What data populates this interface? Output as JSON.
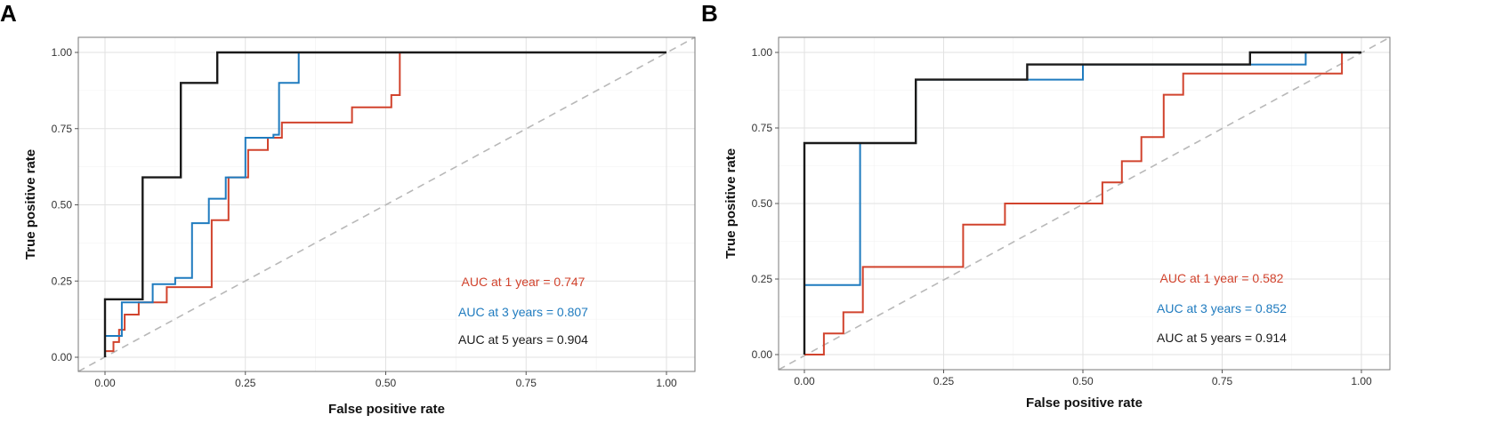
{
  "chart_data": [
    {
      "panel": "A",
      "type": "line",
      "chart_kind": "ROC step curve",
      "xlabel": "False positive rate",
      "ylabel": "True positive rate",
      "xlim": [
        0,
        1
      ],
      "ylim": [
        0,
        1
      ],
      "x_ticks": [
        "0.00",
        "0.25",
        "0.50",
        "0.75",
        "1.00"
      ],
      "y_ticks": [
        "0.00",
        "0.25",
        "0.50",
        "0.75",
        "1.00"
      ],
      "grid": true,
      "diagonal_reference": true,
      "series": [
        {
          "name": "1 year",
          "color": "#d1432d",
          "label": "AUC at 1 year = 0.747",
          "points": [
            [
              0,
              0
            ],
            [
              0,
              0.02
            ],
            [
              0.015,
              0.02
            ],
            [
              0.015,
              0.05
            ],
            [
              0.025,
              0.05
            ],
            [
              0.025,
              0.09
            ],
            [
              0.035,
              0.09
            ],
            [
              0.035,
              0.14
            ],
            [
              0.06,
              0.14
            ],
            [
              0.06,
              0.18
            ],
            [
              0.11,
              0.18
            ],
            [
              0.11,
              0.23
            ],
            [
              0.19,
              0.23
            ],
            [
              0.19,
              0.45
            ],
            [
              0.22,
              0.45
            ],
            [
              0.22,
              0.59
            ],
            [
              0.255,
              0.59
            ],
            [
              0.255,
              0.68
            ],
            [
              0.29,
              0.68
            ],
            [
              0.29,
              0.72
            ],
            [
              0.315,
              0.72
            ],
            [
              0.315,
              0.77
            ],
            [
              0.44,
              0.77
            ],
            [
              0.44,
              0.82
            ],
            [
              0.51,
              0.82
            ],
            [
              0.51,
              0.86
            ],
            [
              0.525,
              0.86
            ],
            [
              0.525,
              1.0
            ]
          ]
        },
        {
          "name": "3 years",
          "color": "#1f7bbf",
          "label": "AUC at 3 years = 0.807",
          "points": [
            [
              0,
              0
            ],
            [
              0,
              0.07
            ],
            [
              0.03,
              0.07
            ],
            [
              0.03,
              0.18
            ],
            [
              0.085,
              0.18
            ],
            [
              0.085,
              0.24
            ],
            [
              0.125,
              0.24
            ],
            [
              0.125,
              0.26
            ],
            [
              0.155,
              0.26
            ],
            [
              0.155,
              0.44
            ],
            [
              0.185,
              0.44
            ],
            [
              0.185,
              0.52
            ],
            [
              0.215,
              0.52
            ],
            [
              0.215,
              0.59
            ],
            [
              0.25,
              0.59
            ],
            [
              0.25,
              0.72
            ],
            [
              0.3,
              0.72
            ],
            [
              0.3,
              0.73
            ],
            [
              0.31,
              0.73
            ],
            [
              0.31,
              0.9
            ],
            [
              0.345,
              0.9
            ],
            [
              0.345,
              1.0
            ]
          ]
        },
        {
          "name": "5 years",
          "color": "#1a1a1a",
          "label": "AUC at 5 years = 0.904",
          "points": [
            [
              0,
              0
            ],
            [
              0,
              0.19
            ],
            [
              0.067,
              0.19
            ],
            [
              0.067,
              0.59
            ],
            [
              0.135,
              0.59
            ],
            [
              0.135,
              0.9
            ],
            [
              0.2,
              0.9
            ],
            [
              0.2,
              1.0
            ],
            [
              1.0,
              1.0
            ]
          ]
        }
      ]
    },
    {
      "panel": "B",
      "type": "line",
      "chart_kind": "ROC step curve",
      "xlabel": "False positive rate",
      "ylabel": "True positive rate",
      "xlim": [
        0,
        1
      ],
      "ylim": [
        0,
        1
      ],
      "x_ticks": [
        "0.00",
        "0.25",
        "0.50",
        "0.75",
        "1.00"
      ],
      "y_ticks": [
        "0.00",
        "0.25",
        "0.50",
        "0.75",
        "1.00"
      ],
      "grid": true,
      "diagonal_reference": true,
      "series": [
        {
          "name": "1 year",
          "color": "#d1432d",
          "label": "AUC at 1 year = 0.582",
          "points": [
            [
              0,
              0
            ],
            [
              0.035,
              0
            ],
            [
              0.035,
              0.07
            ],
            [
              0.07,
              0.07
            ],
            [
              0.07,
              0.14
            ],
            [
              0.105,
              0.14
            ],
            [
              0.105,
              0.29
            ],
            [
              0.285,
              0.29
            ],
            [
              0.285,
              0.43
            ],
            [
              0.36,
              0.43
            ],
            [
              0.36,
              0.5
            ],
            [
              0.535,
              0.5
            ],
            [
              0.535,
              0.57
            ],
            [
              0.57,
              0.57
            ],
            [
              0.57,
              0.64
            ],
            [
              0.605,
              0.64
            ],
            [
              0.605,
              0.72
            ],
            [
              0.645,
              0.72
            ],
            [
              0.645,
              0.86
            ],
            [
              0.68,
              0.86
            ],
            [
              0.68,
              0.93
            ],
            [
              0.965,
              0.93
            ],
            [
              0.965,
              1.0
            ]
          ]
        },
        {
          "name": "3 years",
          "color": "#1f7bbf",
          "label": "AUC at 3 years = 0.852",
          "points": [
            [
              0,
              0
            ],
            [
              0,
              0.23
            ],
            [
              0.1,
              0.23
            ],
            [
              0.1,
              0.7
            ],
            [
              0.2,
              0.7
            ],
            [
              0.2,
              0.91
            ],
            [
              0.5,
              0.91
            ],
            [
              0.5,
              0.96
            ],
            [
              0.9,
              0.96
            ],
            [
              0.9,
              1.0
            ],
            [
              1.0,
              1.0
            ]
          ]
        },
        {
          "name": "5 years",
          "color": "#1a1a1a",
          "label": "AUC at 5 years = 0.914",
          "points": [
            [
              0,
              0
            ],
            [
              0,
              0.7
            ],
            [
              0.2,
              0.7
            ],
            [
              0.2,
              0.91
            ],
            [
              0.4,
              0.91
            ],
            [
              0.4,
              0.96
            ],
            [
              0.8,
              0.96
            ],
            [
              0.8,
              1.0
            ],
            [
              1.0,
              1.0
            ]
          ]
        }
      ]
    }
  ]
}
